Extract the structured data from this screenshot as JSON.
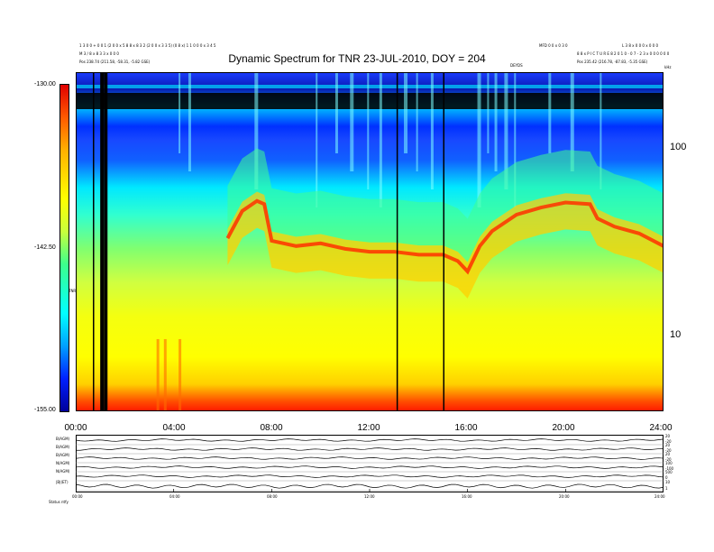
{
  "chart_data": {
    "type": "heatmap",
    "title": "Dynamic Spectrum for TNR 23-JUL-2010, DOY = 204",
    "header_left": [
      "1 3 0 0 + 0 0 1 (2 0 0 x 5 8 8 x 8 3 2 (2 0 0 x 3 3 5) (0 8 x) 1 1 0 0 0 x 3 4 5",
      "M 3 / 8 x 8 3 3 x 0 0 0",
      "Pos   238.74 (211.58, -58.31, -5.82 GSE)"
    ],
    "header_right": [
      "MFD 0 0 x 0 3 0",
      "L 3 8 x 0 0 0 x 0 0 0",
      "8 8 x P I C T U R E 8   2 0 1 0 - 0 7 - 2 3 x 0 0 0 0 0 0",
      "Pos   235.42 (216.78, -87.83, -5.35 GSE)"
    ],
    "top_small_label": "DEYDS",
    "corner_label": "kHz",
    "colorbar": {
      "ticks": [
        "-130.00",
        "-142.50",
        "-155.00"
      ],
      "label": "TNR",
      "range": [
        -155.0,
        -130.0
      ]
    },
    "y_ticks": [
      "100",
      "10"
    ],
    "y_log": true,
    "y_range_khz": [
      4,
      250
    ],
    "x_ticks": [
      "00:00",
      "04:00",
      "08:00",
      "12:00",
      "16:00",
      "20:00",
      "24:00"
    ],
    "x_range_hours": [
      0,
      24
    ],
    "data_gaps_hours": [
      0.7,
      1.0,
      1.15,
      13.1,
      15.0
    ],
    "ridge_khz": {
      "x": [
        0,
        2,
        4,
        6.2,
        6.8,
        7.4,
        7.7,
        8,
        9,
        10,
        11,
        12,
        13,
        14,
        15,
        15.6,
        16,
        16.5,
        17,
        18,
        19,
        20,
        21,
        21.3,
        22,
        23,
        24
      ],
      "y": [
        null,
        null,
        null,
        33,
        46,
        52,
        50,
        32,
        30,
        31,
        29,
        28,
        28,
        27,
        27,
        25,
        22,
        30,
        36,
        44,
        48,
        51,
        50,
        42,
        38,
        35,
        30
      ]
    },
    "lower_panels": {
      "labels": [
        "B(AGM)",
        "B(AGM)",
        "B(AGM)",
        "N(AGM)",
        "N(AGM)",
        "|B|(ET)"
      ],
      "right_ticks": [
        [
          "20",
          "-20"
        ],
        [
          "20",
          "-20"
        ],
        [
          "20",
          "-20"
        ],
        [
          "100",
          "-100"
        ],
        [
          "500",
          "0"
        ],
        [
          "10",
          "1"
        ]
      ],
      "x_ticks": [
        "00:00",
        "04:00",
        "08:00",
        "12:00",
        "16:00",
        "20:00",
        "24:00"
      ],
      "footer": "Status   ntfy"
    }
  }
}
